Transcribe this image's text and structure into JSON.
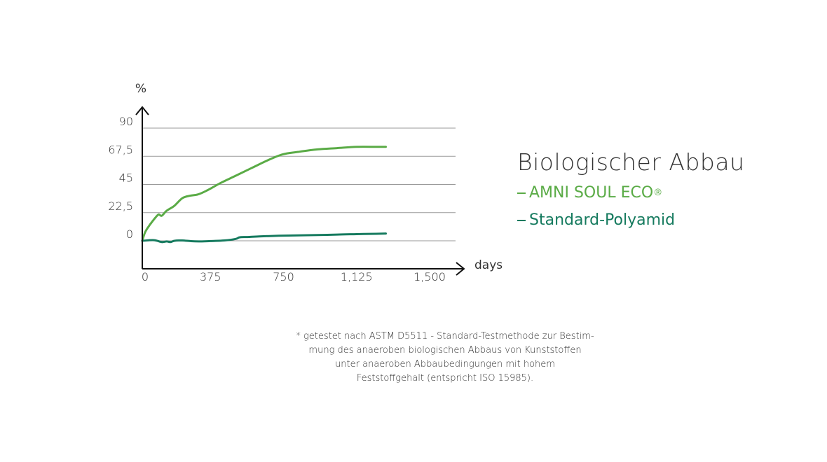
{
  "chart_data": {
    "type": "line",
    "title": "Biologischer Abbau",
    "ylabel": "%",
    "xlabel": "days",
    "xlim": [
      0,
      1500
    ],
    "ylim": [
      0,
      90
    ],
    "x_ticks": [
      "0",
      "375",
      "750",
      "1,125",
      "1,500"
    ],
    "x_tick_values": [
      0,
      375,
      750,
      1125,
      1500
    ],
    "y_ticks": [
      "0",
      "22,5",
      "45",
      "67,5",
      "90"
    ],
    "y_tick_values": [
      0,
      22.5,
      45,
      67.5,
      90
    ],
    "grid": true,
    "legend_placement": "right",
    "series": [
      {
        "name": "AMNI SOUL ECO",
        "name_suffix": "®",
        "color": "#5aab46",
        "x": [
          0,
          15,
          40,
          70,
          85,
          100,
          125,
          165,
          205,
          245,
          285,
          330,
          400,
          480,
          560,
          640,
          720,
          800,
          900,
          1000,
          1100,
          1200,
          1250
        ],
        "y": [
          0,
          7,
          13,
          19,
          21,
          20,
          24,
          28,
          34,
          36,
          37,
          40,
          46,
          52,
          58,
          64,
          69,
          71,
          73,
          74,
          75,
          75,
          75
        ]
      },
      {
        "name": "Standard-Polyamid",
        "color": "#157a5e",
        "x": [
          0,
          60,
          100,
          125,
          145,
          165,
          205,
          250,
          290,
          350,
          420,
          480,
          500,
          540,
          600,
          700,
          800,
          900,
          1000,
          1100,
          1200,
          1250
        ],
        "y": [
          0,
          0.5,
          -1,
          -0.5,
          -1,
          0,
          0.3,
          -0.3,
          -0.5,
          -0.2,
          0.3,
          1.5,
          2.8,
          3,
          3.5,
          4,
          4.3,
          4.6,
          5,
          5.3,
          5.6,
          5.8
        ]
      }
    ]
  },
  "footnote": {
    "lines": [
      "* getestet nach ASTM D5511 - Standard-Testmethode zur Bestim-",
      "mung des anaeroben biologischen Abbaus von Kunststoffen",
      "unter anaeroben Abbaubedingungen mit hohem",
      "Feststoffgehalt (entspricht ISO 15985)."
    ]
  }
}
